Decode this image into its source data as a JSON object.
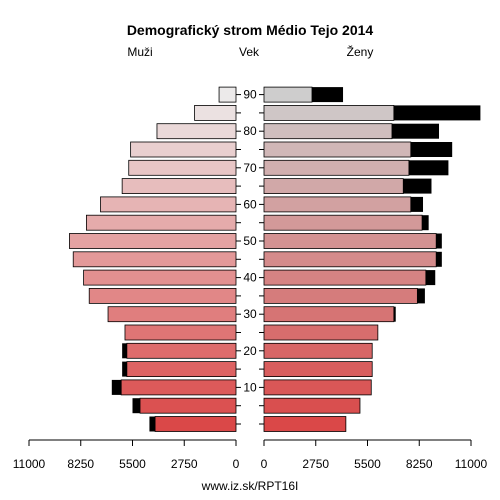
{
  "chart_data": {
    "type": "bar",
    "orientation": "horizontal-pyramid",
    "title": "Demografický strom Médio Tejo 2014",
    "left_label": "Muži",
    "center_label": "Vek",
    "right_label": "Ženy",
    "footer": "www.iz.sk/RPT16I",
    "age_ticks": [
      "10",
      "20",
      "30",
      "40",
      "50",
      "60",
      "70",
      "80",
      "90"
    ],
    "x_ticks_left": [
      "11000",
      "8250",
      "5500",
      "2750",
      "0"
    ],
    "x_ticks_right": [
      "0",
      "2750",
      "5500",
      "8250",
      "11000"
    ],
    "xlim": [
      0,
      11000
    ],
    "age_groups": [
      "0-4",
      "5-9",
      "10-14",
      "15-19",
      "20-24",
      "25-29",
      "30-34",
      "35-39",
      "40-44",
      "45-49",
      "50-54",
      "55-59",
      "60-64",
      "65-69",
      "70-74",
      "75-79",
      "80-84",
      "85-89",
      "90+"
    ],
    "series": [
      {
        "name": "Muži",
        "values": [
          4300,
          5100,
          6100,
          5800,
          5800,
          5900,
          6800,
          7800,
          8100,
          8650,
          8850,
          7950,
          7200,
          6050,
          5700,
          5600,
          4200,
          2200,
          900
        ],
        "excess": [
          300,
          400,
          500,
          250,
          250,
          0,
          0,
          0,
          0,
          0,
          0,
          0,
          0,
          0,
          0,
          0,
          0,
          0,
          0
        ]
      },
      {
        "name": "Ženy",
        "values": [
          4350,
          5100,
          5700,
          5750,
          5750,
          6050,
          6900,
          8150,
          8600,
          9150,
          9150,
          8400,
          7800,
          7400,
          7700,
          7800,
          6800,
          6900,
          2550
        ],
        "excess": [
          0,
          0,
          0,
          0,
          0,
          0,
          100,
          400,
          500,
          300,
          300,
          350,
          650,
          1500,
          2100,
          2200,
          2500,
          4600,
          1650
        ]
      }
    ]
  }
}
